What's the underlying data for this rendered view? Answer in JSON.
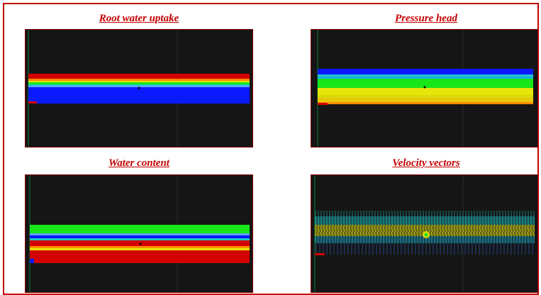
{
  "panels": [
    {
      "id": "root",
      "title": "Root water uptake"
    },
    {
      "id": "pressure",
      "title": "Pressure head"
    },
    {
      "id": "water",
      "title": "Water content"
    },
    {
      "id": "velocity",
      "title": "Velocity vectors"
    }
  ],
  "colors": {
    "frame": "#c40000",
    "title": "#c40000",
    "panel_bg": "#151515",
    "blue": "#0a1aff",
    "red": "#d40000",
    "green": "#19e619",
    "yellow": "#e6e60a",
    "cyan": "#1ec8c8"
  }
}
